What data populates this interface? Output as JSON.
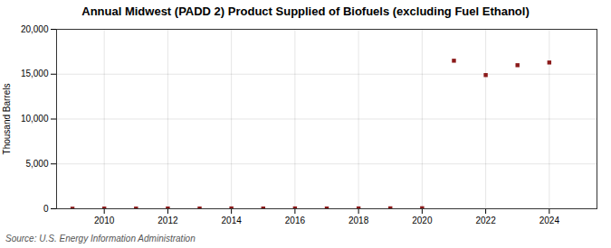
{
  "chart_data": {
    "type": "scatter",
    "title": "Annual Midwest (PADD 2) Product Supplied of Biofuels (excluding Fuel Ethanol)",
    "ylabel": "Thousand Barrels",
    "source": "Source: U.S. Energy Information Administration",
    "x": [
      2009,
      2010,
      2011,
      2012,
      2013,
      2014,
      2015,
      2016,
      2017,
      2018,
      2019,
      2020,
      2021,
      2022,
      2023,
      2024
    ],
    "values": [
      10,
      20,
      20,
      30,
      30,
      40,
      30,
      40,
      30,
      40,
      50,
      60,
      16500,
      14900,
      16000,
      16300
    ],
    "color": "#8b1a1a",
    "marker": "square",
    "xlim": [
      2008.5,
      2025.5
    ],
    "xticks": [
      2010,
      2012,
      2014,
      2016,
      2018,
      2020,
      2022,
      2024
    ],
    "ylim": [
      0,
      20000
    ],
    "yticks": [
      0,
      {
        "value": 5000,
        "label": "5,000"
      },
      {
        "value": 10000,
        "label": "10,000"
      },
      {
        "value": 15000,
        "label": "15,000"
      },
      {
        "value": 20000,
        "label": "20,000"
      }
    ],
    "grid": true
  }
}
